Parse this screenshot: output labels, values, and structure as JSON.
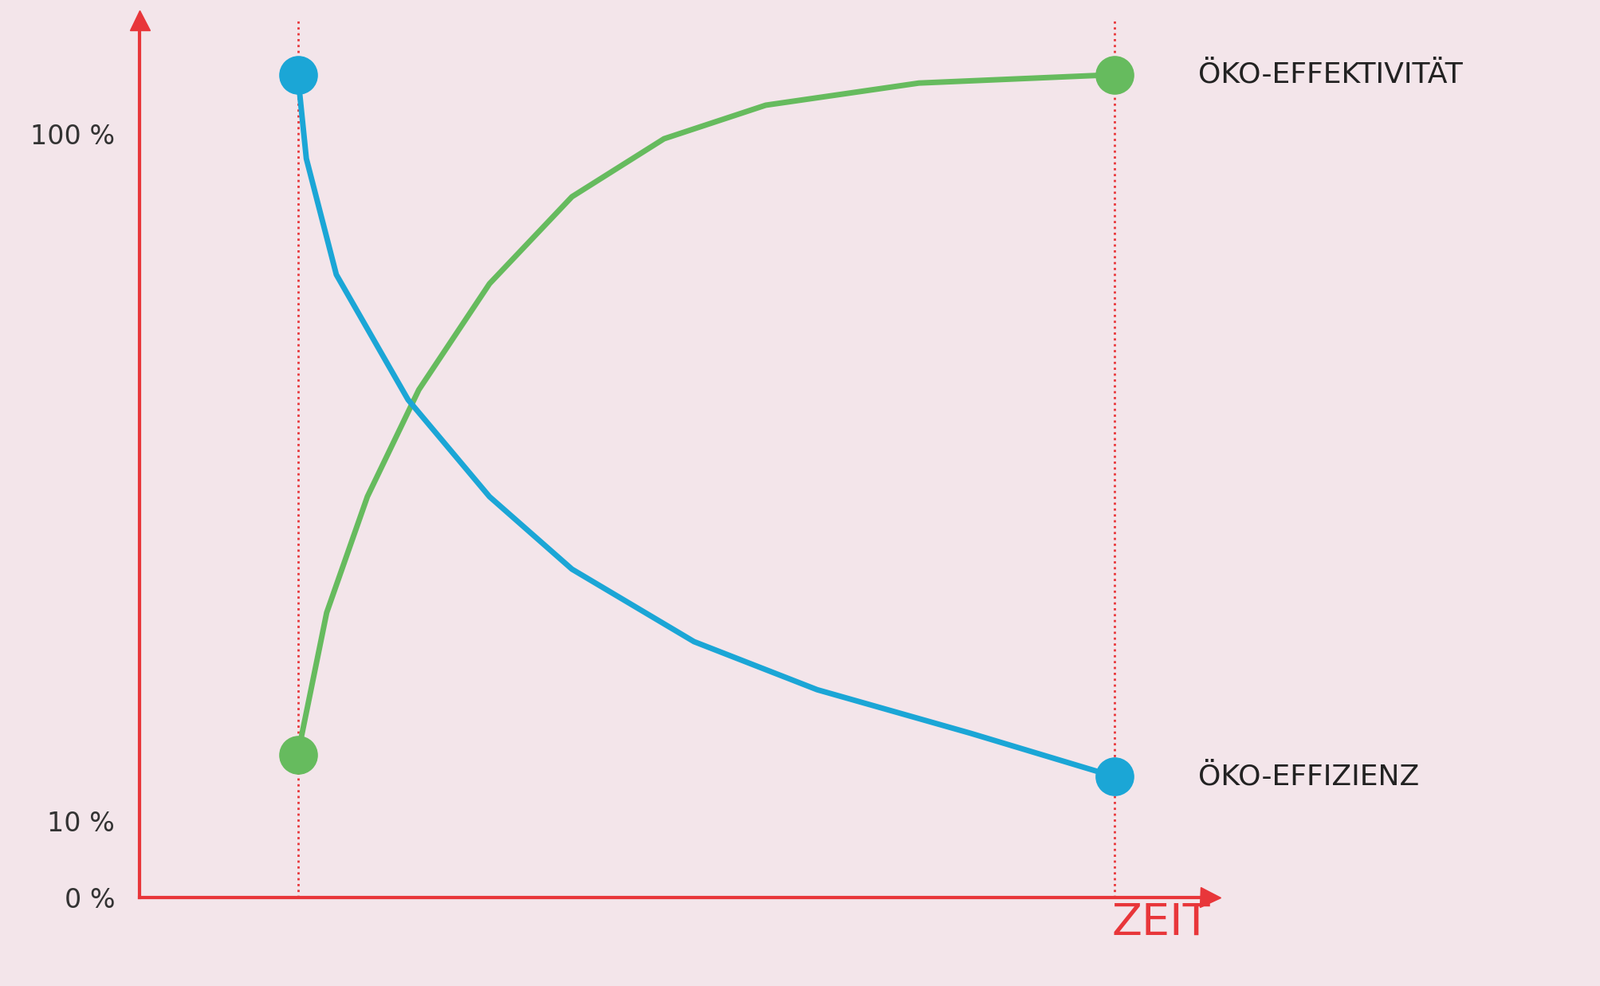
{
  "chart_data": {
    "type": "line",
    "x_label": "ZEIT",
    "xlim": [
      0,
      100
    ],
    "ylim": [
      0,
      115
    ],
    "yticks": [
      {
        "value": 0,
        "label": "0 %"
      },
      {
        "value": 10,
        "label": "10 %"
      },
      {
        "value": 100,
        "label": "100 %"
      }
    ],
    "tick_labels": "y",
    "grid": false,
    "series": [
      {
        "name": "ÖKO-EFFEKTIVITÄT",
        "color": "#66bb5e",
        "line_style": "solid",
        "x": [
          14.8,
          17.5,
          21.3,
          26.1,
          32.7,
          40.4,
          49.0,
          58.5,
          72.8,
          91.1
        ],
        "values": [
          18.7,
          37.3,
          52.5,
          66.5,
          80.4,
          91.8,
          99.4,
          103.8,
          106.7,
          107.8
        ]
      },
      {
        "name": "ÖKO-EFFIZIENZ",
        "color": "#1ba6d6",
        "line_style": "solid",
        "x": [
          14.8,
          15.6,
          18.4,
          25.1,
          32.7,
          40.4,
          51.8,
          63.3,
          77.6,
          91.1
        ],
        "values": [
          107.8,
          96.8,
          81.6,
          65.2,
          52.5,
          43.0,
          33.5,
          27.2,
          21.5,
          15.8
        ]
      }
    ]
  }
}
